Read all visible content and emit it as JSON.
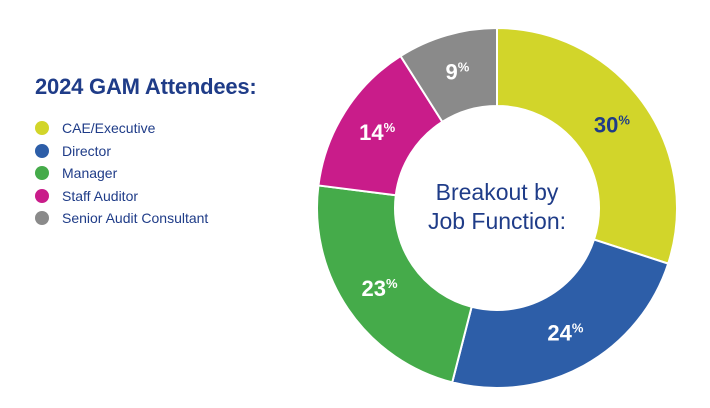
{
  "chart_data": {
    "type": "pie",
    "variant": "donut",
    "title": "2024 GAM Attendees:",
    "center_label": [
      "Breakout by",
      "Job Function:"
    ],
    "categories": [
      "CAE/Executive",
      "Director",
      "Manager",
      "Staff Auditor",
      "Senior Audit Consultant"
    ],
    "values": [
      30,
      24,
      23,
      14,
      9
    ],
    "value_suffix": "%",
    "colors": [
      "#d2d52a",
      "#2d5ea8",
      "#45ab4a",
      "#c91c8a",
      "#8a8a8a"
    ],
    "label_colors": [
      "#1f3c88",
      "#ffffff",
      "#ffffff",
      "#ffffff",
      "#ffffff"
    ],
    "legend_position": "left"
  }
}
